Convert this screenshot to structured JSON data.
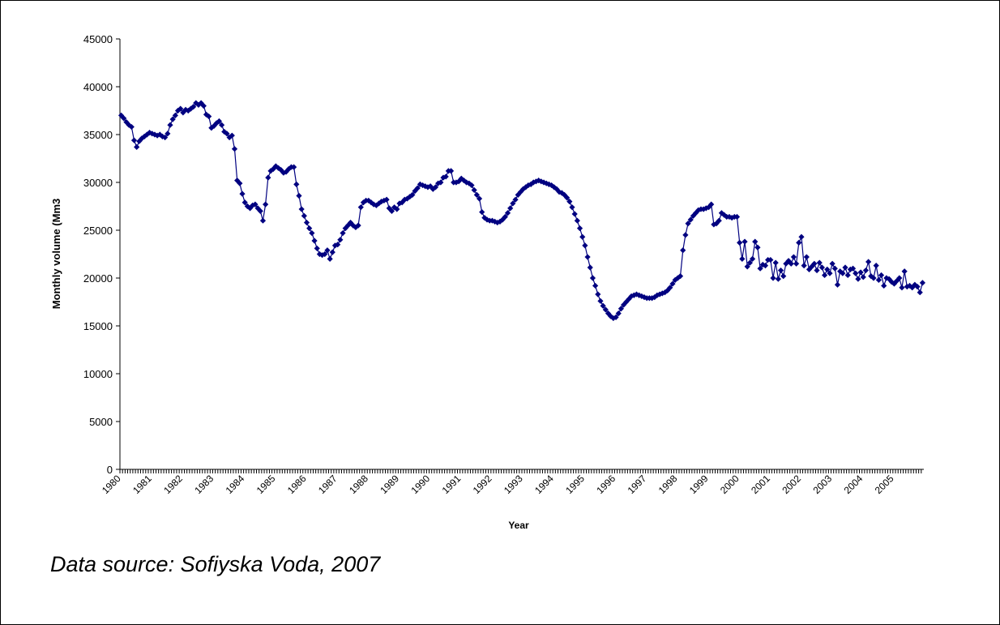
{
  "chart_data": {
    "type": "line",
    "y_label": "Monthly volume (Mm3",
    "x_label": "Year",
    "annotation": "Data source: Sofiyska Voda, 2007",
    "color": "#000080",
    "marker": "diamond",
    "ylim": [
      0,
      45000
    ],
    "yticks": [
      0,
      5000,
      10000,
      15000,
      20000,
      25000,
      30000,
      35000,
      40000,
      45000
    ],
    "categories": [
      "1980",
      null,
      null,
      null,
      null,
      null,
      null,
      null,
      null,
      null,
      null,
      null,
      "1981",
      null,
      null,
      null,
      null,
      null,
      null,
      null,
      null,
      null,
      null,
      null,
      "1982",
      null,
      null,
      null,
      null,
      null,
      null,
      null,
      null,
      null,
      null,
      null,
      "1983",
      null,
      null,
      null,
      null,
      null,
      null,
      null,
      null,
      null,
      null,
      null,
      "1984",
      null,
      null,
      null,
      null,
      null,
      null,
      null,
      null,
      null,
      null,
      null,
      "1985",
      null,
      null,
      null,
      null,
      null,
      null,
      null,
      null,
      null,
      null,
      null,
      "1986",
      null,
      null,
      null,
      null,
      null,
      null,
      null,
      null,
      null,
      null,
      null,
      "1987",
      null,
      null,
      null,
      null,
      null,
      null,
      null,
      null,
      null,
      null,
      null,
      "1988",
      null,
      null,
      null,
      null,
      null,
      null,
      null,
      null,
      null,
      null,
      null,
      "1989",
      null,
      null,
      null,
      null,
      null,
      null,
      null,
      null,
      null,
      null,
      null,
      "1990",
      null,
      null,
      null,
      null,
      null,
      null,
      null,
      null,
      null,
      null,
      null,
      "1991",
      null,
      null,
      null,
      null,
      null,
      null,
      null,
      null,
      null,
      null,
      null,
      "1992",
      null,
      null,
      null,
      null,
      null,
      null,
      null,
      null,
      null,
      null,
      null,
      "1993",
      null,
      null,
      null,
      null,
      null,
      null,
      null,
      null,
      null,
      null,
      null,
      "1994",
      null,
      null,
      null,
      null,
      null,
      null,
      null,
      null,
      null,
      null,
      null,
      "1995",
      null,
      null,
      null,
      null,
      null,
      null,
      null,
      null,
      null,
      null,
      null,
      "1996",
      null,
      null,
      null,
      null,
      null,
      null,
      null,
      null,
      null,
      null,
      null,
      "1997",
      null,
      null,
      null,
      null,
      null,
      null,
      null,
      null,
      null,
      null,
      null,
      "1998",
      null,
      null,
      null,
      null,
      null,
      null,
      null,
      null,
      null,
      null,
      null,
      "1999",
      null,
      null,
      null,
      null,
      null,
      null,
      null,
      null,
      null,
      null,
      null,
      "2000",
      null,
      null,
      null,
      null,
      null,
      null,
      null,
      null,
      null,
      null,
      null,
      "2001",
      null,
      null,
      null,
      null,
      null,
      null,
      null,
      null,
      null,
      null,
      null,
      "2002",
      null,
      null,
      null,
      null,
      null,
      null,
      null,
      null,
      null,
      null,
      null,
      "2003",
      null,
      null,
      null,
      null,
      null,
      null,
      null,
      null,
      null,
      null,
      null,
      "2004",
      null,
      null,
      null,
      null,
      null,
      null,
      null,
      null,
      null,
      null,
      null,
      "2005",
      null,
      null,
      null,
      null,
      null,
      null,
      null,
      null,
      null,
      null,
      null
    ],
    "values": [
      37000,
      36700,
      36300,
      36000,
      35800,
      34400,
      33700,
      34300,
      34600,
      34800,
      35000,
      35200,
      35100,
      35000,
      34900,
      35000,
      34800,
      34700,
      35100,
      36000,
      36600,
      37000,
      37500,
      37700,
      37300,
      37600,
      37500,
      37700,
      37900,
      38300,
      38100,
      38300,
      38000,
      37100,
      36900,
      35700,
      35900,
      36200,
      36400,
      36000,
      35300,
      35100,
      34700,
      34900,
      33500,
      30200,
      29900,
      28800,
      27900,
      27500,
      27300,
      27600,
      27700,
      27300,
      27000,
      26000,
      27700,
      30500,
      31200,
      31400,
      31700,
      31500,
      31300,
      31000,
      31100,
      31400,
      31600,
      31600,
      29800,
      28600,
      27200,
      26500,
      25800,
      25200,
      24700,
      23900,
      23100,
      22500,
      22400,
      22500,
      22900,
      22000,
      22700,
      23400,
      23500,
      24000,
      24700,
      25200,
      25500,
      25800,
      25500,
      25300,
      25500,
      27400,
      27900,
      28100,
      28100,
      27900,
      27700,
      27600,
      27800,
      28000,
      28100,
      28200,
      27300,
      27000,
      27400,
      27200,
      27800,
      27900,
      28200,
      28300,
      28500,
      28700,
      29100,
      29400,
      29800,
      29700,
      29600,
      29500,
      29600,
      29300,
      29500,
      29900,
      30000,
      30500,
      30600,
      31200,
      31200,
      30000,
      30000,
      30100,
      30400,
      30200,
      30000,
      29900,
      29700,
      29200,
      28700,
      28300,
      26900,
      26300,
      26100,
      26000,
      26000,
      25900,
      25800,
      25900,
      26100,
      26400,
      26800,
      27300,
      27800,
      28200,
      28700,
      29000,
      29300,
      29500,
      29700,
      29800,
      30000,
      30100,
      30200,
      30100,
      30000,
      29900,
      29800,
      29700,
      29500,
      29300,
      29000,
      28900,
      28700,
      28400,
      28000,
      27400,
      26700,
      26000,
      25200,
      24300,
      23400,
      22200,
      21100,
      20000,
      19200,
      18300,
      17600,
      17100,
      16700,
      16300,
      16000,
      15800,
      15900,
      16300,
      16800,
      17200,
      17500,
      17800,
      18100,
      18200,
      18300,
      18200,
      18100,
      18000,
      17900,
      17900,
      17900,
      18000,
      18200,
      18300,
      18400,
      18500,
      18700,
      19000,
      19400,
      19800,
      20000,
      20200,
      22900,
      24500,
      25700,
      26100,
      26500,
      26800,
      27100,
      27200,
      27200,
      27300,
      27400,
      27700,
      25600,
      25700,
      26000,
      26800,
      26600,
      26400,
      26400,
      26300,
      26400,
      26400,
      23700,
      22000,
      23800,
      21200,
      21600,
      22000,
      23800,
      23200,
      21000,
      21400,
      21300,
      21900,
      21900,
      20000,
      21600,
      19900,
      20800,
      20200,
      21500,
      21800,
      21500,
      22200,
      21500,
      23700,
      24300,
      21300,
      22200,
      20900,
      21200,
      21500,
      20800,
      21600,
      21100,
      20300,
      20900,
      20500,
      21500,
      21000,
      19300,
      20700,
      20500,
      21100,
      20300,
      20900,
      21000,
      20500,
      19900,
      20600,
      20100,
      20800,
      21700,
      20200,
      20000,
      21300,
      19800,
      20300,
      19200,
      20000,
      19900,
      19600,
      19400,
      19700,
      20000,
      19000,
      20700,
      19100,
      19200,
      19000,
      19300,
      19100,
      18500,
      19500
    ]
  }
}
